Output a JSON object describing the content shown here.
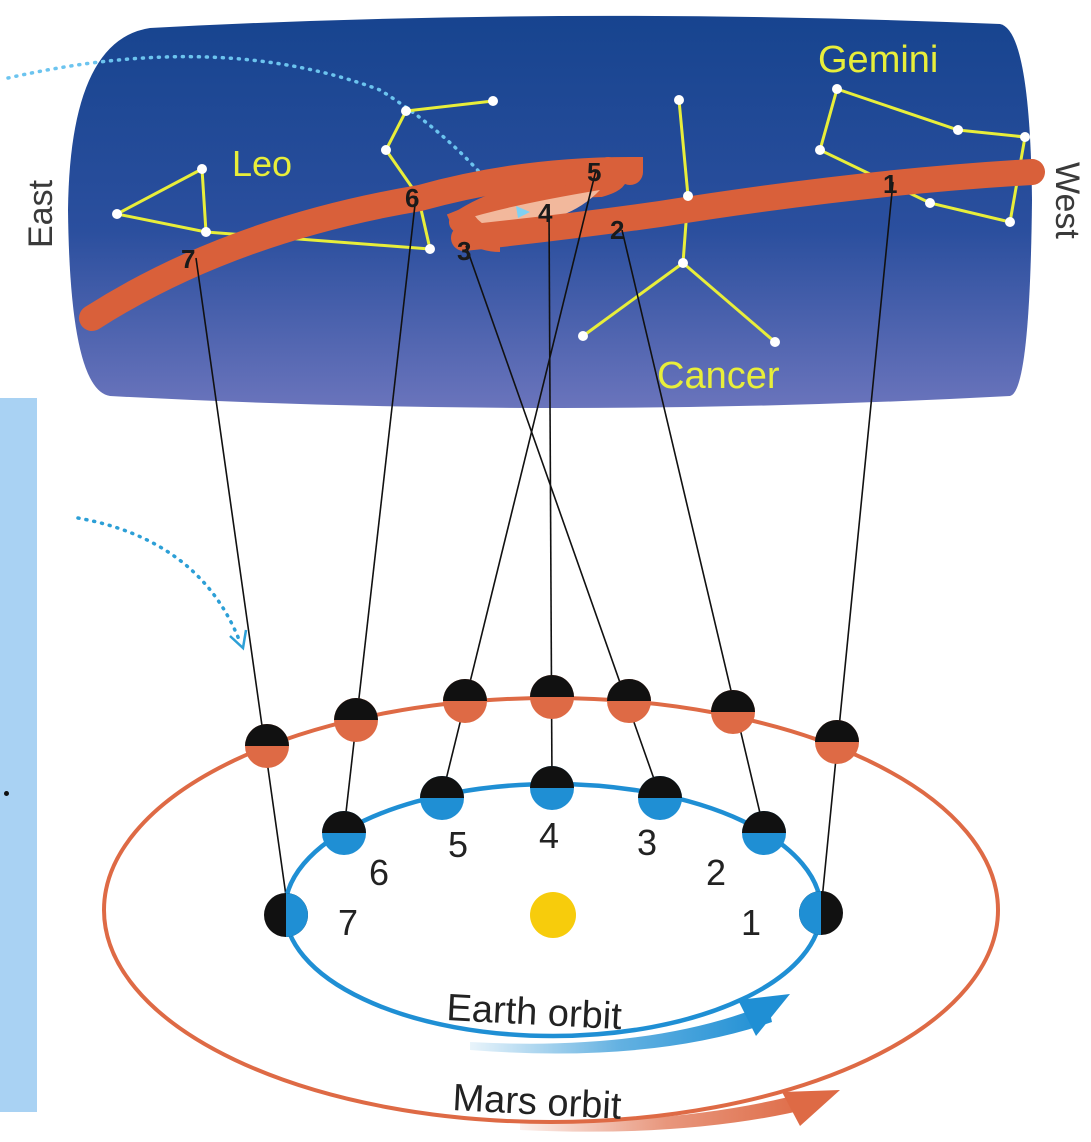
{
  "sky": {
    "direction_left": "East",
    "direction_right": "West",
    "colors": {
      "top": "#17448f",
      "bottom": "#6a74bc",
      "path": "#d9603a",
      "loop_inner": "#f2b89c",
      "constellation": "#e8ee3a"
    }
  },
  "constellations": [
    {
      "id": "leo",
      "name": "Leo"
    },
    {
      "id": "gemini",
      "name": "Gemini"
    },
    {
      "id": "cancer",
      "name": "Cancer"
    }
  ],
  "sky_positions": [
    "1",
    "2",
    "3",
    "4",
    "5",
    "6",
    "7"
  ],
  "orbit_positions": [
    "1",
    "2",
    "3",
    "4",
    "5",
    "6",
    "7"
  ],
  "orbits": {
    "earth": {
      "label": "Earth orbit",
      "color": "#1f8fd4"
    },
    "mars": {
      "label": "Mars orbit",
      "color": "#de6a45"
    }
  },
  "sun": {
    "color": "#f7cc0c"
  }
}
